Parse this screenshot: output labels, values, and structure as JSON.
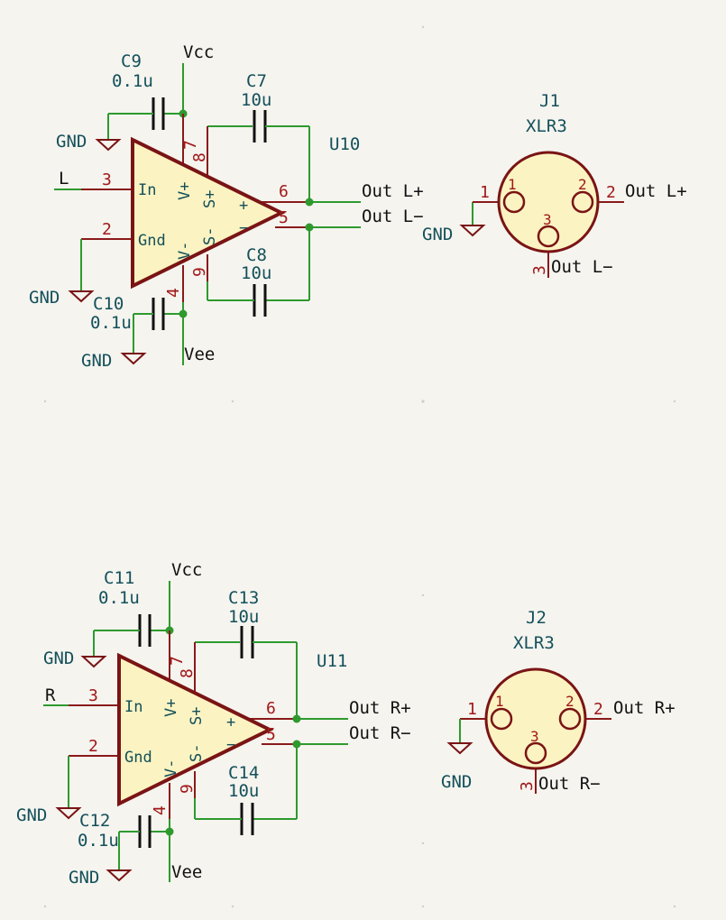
{
  "colors": {
    "background": "#f5f4ef",
    "wire": "#2e9a2e",
    "component_body": "#7a1414",
    "component_fill": "#fbf3c2",
    "label_text": "#14505a",
    "pin_number": "#a01818",
    "net_label": "#111111"
  },
  "common": {
    "gnd": "GND",
    "vcc": "Vcc",
    "vee": "Vee",
    "in": "In",
    "gnd_pin": "Gnd",
    "vplus": "V+",
    "vminus": "V-",
    "splus": "S+",
    "sminus": "S-",
    "plus": "+",
    "minus": "−",
    "p1": "1",
    "p2": "2",
    "p3": "3",
    "p4": "4",
    "p5": "5",
    "p6": "6",
    "p7": "7",
    "p8": "8",
    "p9": "9"
  },
  "left": {
    "amp_ref": "U10",
    "input_net": "L",
    "out_pos": "Out L+",
    "out_neg": "Out L−",
    "c_vcc": {
      "ref": "C9",
      "value": "0.1u"
    },
    "c_top": {
      "ref": "C7",
      "value": "10u"
    },
    "c_bot": {
      "ref": "C8",
      "value": "10u"
    },
    "c_vee": {
      "ref": "C10",
      "value": "0.1u"
    },
    "connector": {
      "ref": "J1",
      "value": "XLR3",
      "pin2_net": "Out L+",
      "pin3_net": "Out L−"
    }
  },
  "right": {
    "amp_ref": "U11",
    "input_net": "R",
    "out_pos": "Out R+",
    "out_neg": "Out R−",
    "c_vcc": {
      "ref": "C11",
      "value": "0.1u"
    },
    "c_top": {
      "ref": "C13",
      "value": "10u"
    },
    "c_bot": {
      "ref": "C14",
      "value": "10u"
    },
    "c_vee": {
      "ref": "C12",
      "value": "0.1u"
    },
    "connector": {
      "ref": "J2",
      "value": "XLR3",
      "pin2_net": "Out R+",
      "pin3_net": "Out R−"
    }
  }
}
